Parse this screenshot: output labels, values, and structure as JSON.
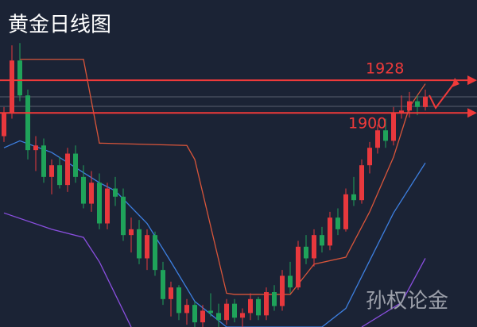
{
  "chart_data": {
    "type": "candlestick",
    "title": "黄金日线图",
    "watermark": "孙权论金",
    "ylim": [
      1716,
      1997
    ],
    "up_color": "#e8383d",
    "down_color": "#1fa35a",
    "open": [
      1880,
      1900,
      1945,
      1915,
      1868,
      1872,
      1845,
      1855,
      1838,
      1865,
      1845,
      1822,
      1840,
      1805,
      1835,
      1828,
      1795,
      1800,
      1775,
      1795,
      1765,
      1740,
      1750,
      1728,
      1735,
      1720,
      1730,
      1728,
      1722,
      1736,
      1724,
      1728,
      1740,
      1726,
      1746,
      1734,
      1760,
      1750,
      1785,
      1775,
      1795,
      1786,
      1810,
      1800,
      1830,
      1825,
      1855,
      1870,
      1885,
      1876,
      1900,
      1902,
      1910,
      1905
    ],
    "high": [
      1905,
      1958,
      1960,
      1920,
      1880,
      1878,
      1860,
      1862,
      1870,
      1872,
      1855,
      1850,
      1848,
      1840,
      1845,
      1835,
      1810,
      1808,
      1800,
      1798,
      1772,
      1755,
      1752,
      1740,
      1738,
      1735,
      1745,
      1736,
      1740,
      1740,
      1732,
      1745,
      1742,
      1750,
      1752,
      1765,
      1772,
      1790,
      1795,
      1800,
      1802,
      1815,
      1818,
      1835,
      1845,
      1860,
      1875,
      1890,
      1895,
      1905,
      1915,
      1918,
      1915,
      1920
    ],
    "low": [
      1875,
      1895,
      1910,
      1860,
      1850,
      1840,
      1830,
      1835,
      1832,
      1840,
      1818,
      1815,
      1800,
      1800,
      1820,
      1790,
      1780,
      1770,
      1765,
      1760,
      1735,
      1725,
      1722,
      1718,
      1716,
      1716,
      1725,
      1716,
      1718,
      1720,
      1716,
      1722,
      1722,
      1722,
      1730,
      1730,
      1745,
      1748,
      1770,
      1768,
      1780,
      1782,
      1795,
      1798,
      1820,
      1822,
      1848,
      1865,
      1870,
      1872,
      1895,
      1896,
      1898,
      1902
    ],
    "close": [
      1900,
      1945,
      1915,
      1868,
      1872,
      1845,
      1855,
      1838,
      1865,
      1845,
      1822,
      1840,
      1805,
      1835,
      1828,
      1795,
      1800,
      1775,
      1795,
      1765,
      1740,
      1750,
      1728,
      1735,
      1720,
      1730,
      1728,
      1722,
      1736,
      1724,
      1728,
      1740,
      1726,
      1746,
      1734,
      1760,
      1750,
      1785,
      1775,
      1795,
      1786,
      1810,
      1800,
      1830,
      1825,
      1855,
      1870,
      1885,
      1876,
      1900,
      1902,
      1910,
      1905,
      1914
    ],
    "lines": [
      {
        "color": "#d9553a",
        "x": [
          2,
          10,
          12,
          23,
          24,
          28,
          29,
          36,
          39,
          43,
          46,
          49,
          51,
          53
        ],
        "values": [
          1946,
          1946,
          1874,
          1872,
          1860,
          1745,
          1744,
          1744,
          1770,
          1776,
          1815,
          1862,
          1905,
          1925
        ]
      },
      {
        "color": "#3d7fe0",
        "x": [
          0,
          2,
          6,
          12,
          14,
          18,
          21,
          24,
          28,
          40,
          43,
          46,
          49,
          53
        ],
        "values": [
          1870,
          1876,
          1866,
          1840,
          1833,
          1805,
          1772,
          1738,
          1716,
          1716,
          1732,
          1773,
          1814,
          1857
        ]
      },
      {
        "color": "#8a4fe0",
        "x": [
          0,
          6,
          10,
          12,
          16,
          30,
          45,
          50,
          53
        ],
        "values": [
          1814,
          1800,
          1793,
          1772,
          1716,
          null,
          1716,
          1737,
          1775
        ]
      }
    ],
    "levels": [
      1928,
      1900
    ],
    "level_color": "#f03a3a"
  }
}
